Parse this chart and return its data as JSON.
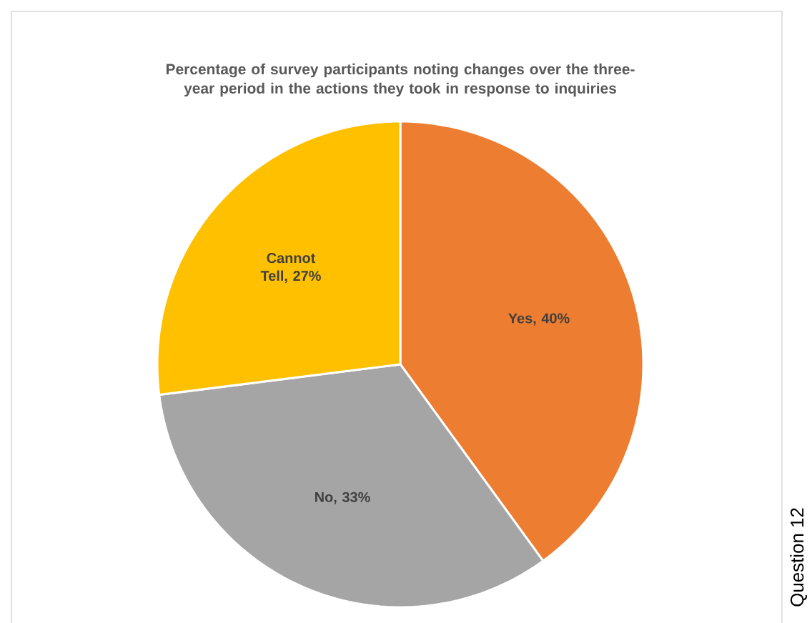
{
  "chart_data": {
    "type": "pie",
    "title": "Percentage of survey participants noting changes over the three-year period in the actions they took in response to inquiries",
    "categories": [
      "Yes",
      "No",
      "Cannot Tell"
    ],
    "values": [
      40,
      33,
      27
    ],
    "colors": [
      "#ed7d31",
      "#a5a5a5",
      "#ffc000"
    ],
    "value_labels": [
      ", 40%",
      ", 33%",
      ", 27%"
    ],
    "annotations": [
      "Question 12"
    ]
  }
}
